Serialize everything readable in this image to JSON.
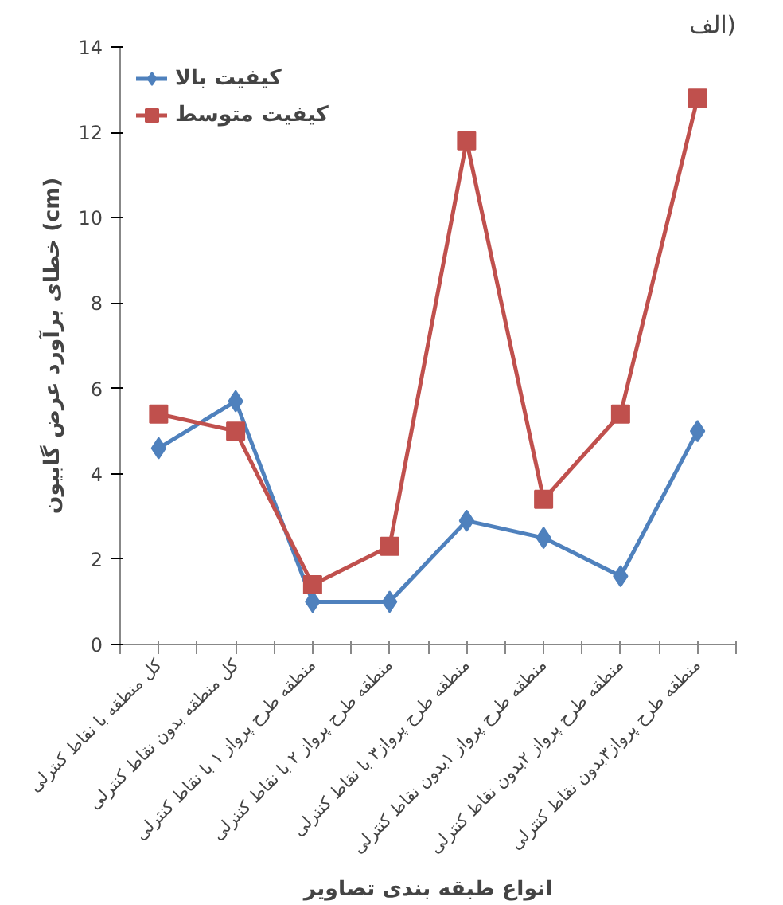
{
  "chart_data": {
    "type": "line",
    "xlabel": "انواع طبقه بندی تصاویر",
    "ylabel": "خطای برآورد عرض گابیون (cm)",
    "annotations": [
      "الف)"
    ],
    "categories": [
      "کل منطقه با نقاط کنترلی",
      "کل منطقه بدون نقاط کنترلی",
      "منطقه طرح پرواز ۱ با نقاط کنترلی",
      "منطقه طرح پرواز ۲ با نقاط کنترلی",
      "منطقه طرح پرواز۳ با نقاط کنترلی",
      "منطقه طرح پرواز ۱بدون نقاط کنترلی",
      "منطقه طرح پرواز ۲بدون نقاط کنترلی",
      "منطقه طرح پرواز۳بدون نقاط کنترلی"
    ],
    "series": [
      {
        "name": "کیفیت بالا",
        "color": "#4f81bd",
        "marker": "diamond",
        "values": [
          4.6,
          5.7,
          1.0,
          1.0,
          2.9,
          2.5,
          1.6,
          5.0
        ]
      },
      {
        "name": "کیفیت متوسط",
        "color": "#c0504d",
        "marker": "square",
        "values": [
          5.4,
          5.0,
          1.4,
          2.3,
          11.8,
          3.4,
          5.4,
          12.8
        ]
      }
    ],
    "ylim": [
      0,
      14
    ],
    "yticks": [
      0,
      2,
      4,
      6,
      8,
      10,
      12,
      14
    ],
    "grid": false,
    "legend": "top left"
  }
}
